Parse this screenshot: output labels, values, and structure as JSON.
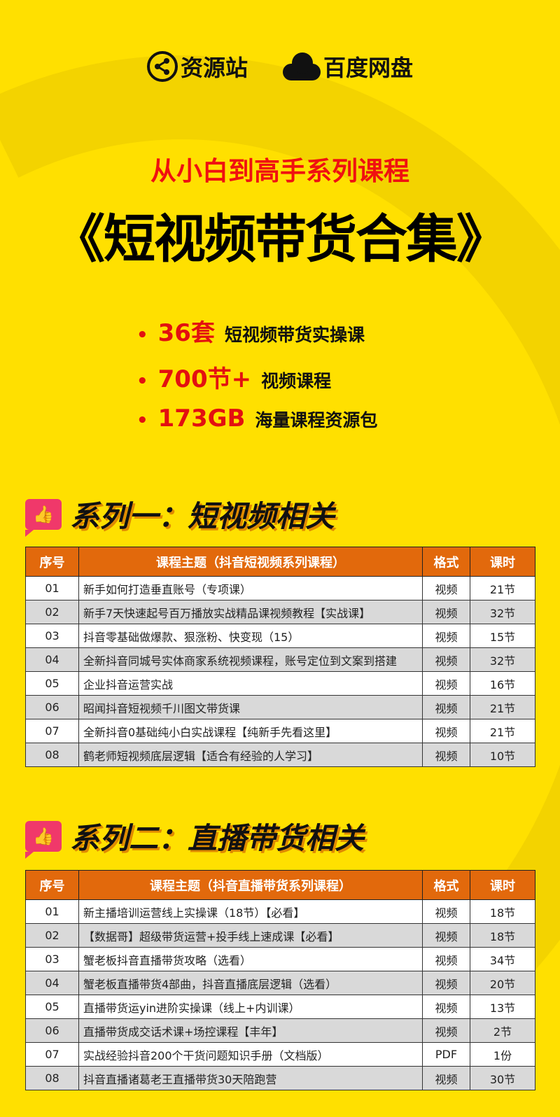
{
  "brand": {
    "site": "资源站",
    "disk": "百度网盘"
  },
  "subtitle": "从小白到高手系列课程",
  "title": "《短视频带货合集》",
  "bullets": [
    {
      "highlight": "36套",
      "text": "短视频带货实操课"
    },
    {
      "highlight": "700节+",
      "text": "视频课程"
    },
    {
      "highlight": "173GB",
      "text": "海量课程资源包"
    }
  ],
  "sections": [
    {
      "heading": "系列一：短视频相关",
      "columns": [
        "序号",
        "课程主题（抖音短视频系列课程）",
        "格式",
        "课时"
      ],
      "rows": [
        [
          "01",
          "新手如何打造垂直账号（专项课）",
          "视频",
          "21节"
        ],
        [
          "02",
          "新手7天快速起号百万播放实战精品课视频教程【实战课】",
          "视频",
          "32节"
        ],
        [
          "03",
          "抖音零基础做爆款、狠涨粉、快变现（15）",
          "视频",
          "15节"
        ],
        [
          "04",
          "全新抖音同城号实体商家系统视频课程，账号定位到文案到搭建",
          "视频",
          "32节"
        ],
        [
          "05",
          "企业抖音运营实战",
          "视频",
          "16节"
        ],
        [
          "06",
          "昭闻抖音短视频千川图文带货课",
          "视频",
          "21节"
        ],
        [
          "07",
          "全新抖音0基础纯小白实战课程【纯新手先看这里】",
          "视频",
          "21节"
        ],
        [
          "08",
          "鹤老师短视频底层逻辑【适合有经验的人学习】",
          "视频",
          "10节"
        ]
      ]
    },
    {
      "heading": "系列二：直播带货相关",
      "columns": [
        "序号",
        "课程主题（抖音直播带货系列课程）",
        "格式",
        "课时"
      ],
      "rows": [
        [
          "01",
          "新主播培训运营线上实操课（18节）【必看】",
          "视频",
          "18节"
        ],
        [
          "02",
          "【数据哥】超级带货运营+投手线上速成课【必看】",
          "视频",
          "18节"
        ],
        [
          "03",
          "蟹老板抖音直播带货攻略（选看）",
          "视频",
          "34节"
        ],
        [
          "04",
          "蟹老板直播带货4部曲，抖音直播底层逻辑（选看）",
          "视频",
          "20节"
        ],
        [
          "05",
          "直播带货运yin进阶实操课（线上+内训课）",
          "视频",
          "13节"
        ],
        [
          "06",
          "直播带货成交话术课+场控课程【丰年】",
          "视频",
          "2节"
        ],
        [
          "07",
          "实战经验抖音200个干货问题知识手册（文档版）",
          "PDF",
          "1份"
        ],
        [
          "08",
          "抖音直播诸葛老王直播带货30天陪跑营",
          "视频",
          "30节"
        ]
      ]
    }
  ]
}
